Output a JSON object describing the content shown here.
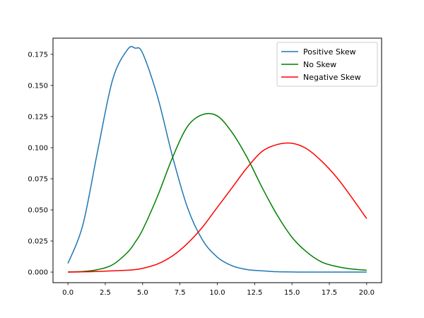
{
  "chart_data": {
    "type": "line",
    "title": "",
    "xlabel": "",
    "ylabel": "",
    "xlim": [
      -1.0,
      21.0
    ],
    "ylim": [
      -0.0085,
      0.188
    ],
    "xticks": [
      0.0,
      2.5,
      5.0,
      7.5,
      10.0,
      12.5,
      15.0,
      17.5,
      20.0
    ],
    "xtick_labels": [
      "0.0",
      "2.5",
      "5.0",
      "7.5",
      "10.0",
      "12.5",
      "15.0",
      "17.5",
      "20.0"
    ],
    "yticks": [
      0.0,
      0.025,
      0.05,
      0.075,
      0.1,
      0.125,
      0.15,
      0.175
    ],
    "ytick_labels": [
      "0.000",
      "0.025",
      "0.050",
      "0.075",
      "0.100",
      "0.125",
      "0.150",
      "0.175"
    ],
    "grid": false,
    "legend": "top-right",
    "x": [
      0,
      1,
      2,
      3,
      4,
      4.5,
      5,
      6,
      7,
      8,
      9,
      10,
      11,
      12,
      13,
      14,
      15,
      16,
      17,
      18,
      19,
      20
    ],
    "series": [
      {
        "name": "Positive Skew",
        "color": "#1f77b4",
        "values": [
          0.007,
          0.038,
          0.098,
          0.155,
          0.179,
          0.18,
          0.176,
          0.141,
          0.093,
          0.052,
          0.026,
          0.012,
          0.005,
          0.002,
          0.001,
          0.0003,
          0.0001,
          0.0,
          0.0,
          0.0,
          0.0,
          0.0
        ]
      },
      {
        "name": "No Skew",
        "color": "#008000",
        "values": [
          0.0001,
          0.0005,
          0.002,
          0.006,
          0.016,
          0.024,
          0.034,
          0.061,
          0.092,
          0.117,
          0.1265,
          0.1255,
          0.112,
          0.092,
          0.068,
          0.046,
          0.028,
          0.016,
          0.008,
          0.0045,
          0.0025,
          0.0015
        ]
      },
      {
        "name": "Negative Skew",
        "color": "#ff0000",
        "values": [
          0.0,
          0.0002,
          0.0005,
          0.001,
          0.0015,
          0.002,
          0.003,
          0.0065,
          0.013,
          0.023,
          0.036,
          0.052,
          0.068,
          0.084,
          0.097,
          0.1025,
          0.1035,
          0.099,
          0.089,
          0.076,
          0.06,
          0.043
        ]
      }
    ]
  }
}
